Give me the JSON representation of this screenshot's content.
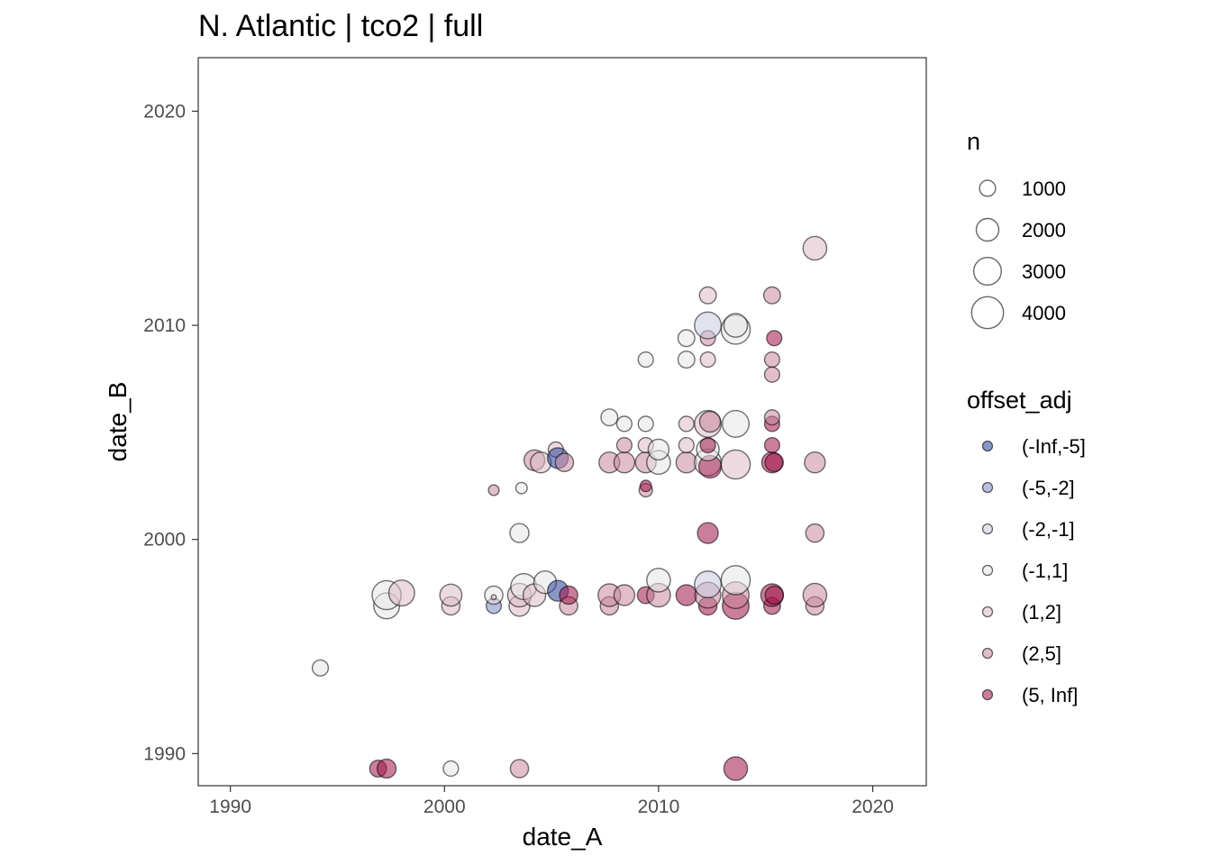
{
  "chart_data": {
    "type": "scatter",
    "title": "N. Atlantic | tco2 | full",
    "xlabel": "date_A",
    "ylabel": "date_B",
    "xlim": [
      1988.5,
      2022.5
    ],
    "ylim": [
      1988.5,
      2022.5
    ],
    "x_ticks": [
      1990,
      2000,
      2010,
      2020
    ],
    "y_ticks": [
      1990,
      2000,
      2010,
      2020
    ],
    "grid": false,
    "legend_position": "right",
    "size_legend": {
      "title": "n",
      "entries": [
        {
          "label": "1000",
          "value": 1000
        },
        {
          "label": "2000",
          "value": 2000
        },
        {
          "label": "3000",
          "value": 3000
        },
        {
          "label": "4000",
          "value": 4000
        }
      ]
    },
    "color_legend": {
      "title": "offset_adj",
      "entries": [
        {
          "label": "(-Inf,-5]",
          "color": "#2a3f9a"
        },
        {
          "label": "(-5,-2]",
          "color": "#7e8cc4"
        },
        {
          "label": "(-2,-1]",
          "color": "#c8cbdf"
        },
        {
          "label": "(-1,1]",
          "color": "#e6e6e6"
        },
        {
          "label": "(1,2]",
          "color": "#dcbcc6"
        },
        {
          "label": "(2,5]",
          "color": "#c8899d"
        },
        {
          "label": "(5, Inf]",
          "color": "#a11449"
        }
      ]
    },
    "points": [
      {
        "x": 1994.2,
        "y": 1994.0,
        "n": 1000,
        "class": "(-1,1]"
      },
      {
        "x": 1996.9,
        "y": 1989.3,
        "n": 1100,
        "class": "(5, Inf]"
      },
      {
        "x": 1997.3,
        "y": 1989.3,
        "n": 1400,
        "class": "(5, Inf]"
      },
      {
        "x": 1997.3,
        "y": 1996.9,
        "n": 2600,
        "class": "(-1,1]"
      },
      {
        "x": 1997.3,
        "y": 1997.4,
        "n": 3300,
        "class": "(-1,1]"
      },
      {
        "x": 2000.3,
        "y": 1989.3,
        "n": 900,
        "class": "(-1,1]"
      },
      {
        "x": 2000.3,
        "y": 1996.9,
        "n": 1300,
        "class": "(1,2]"
      },
      {
        "x": 2000.3,
        "y": 1997.4,
        "n": 1900,
        "class": "(1,2]"
      },
      {
        "x": 1998.0,
        "y": 1997.5,
        "n": 2600,
        "class": "(1,2]"
      },
      {
        "x": 2002.3,
        "y": 1996.9,
        "n": 900,
        "class": "(-5,-2]"
      },
      {
        "x": 2002.3,
        "y": 1997.4,
        "n": 1300,
        "class": "(-1,1]"
      },
      {
        "x": 2002.3,
        "y": 2002.3,
        "n": 450,
        "class": "(2,5]"
      },
      {
        "x": 2002.3,
        "y": 1997.3,
        "n": 100,
        "class": "(1,2]"
      },
      {
        "x": 2003.5,
        "y": 1989.3,
        "n": 1300,
        "class": "(2,5]"
      },
      {
        "x": 2003.5,
        "y": 1996.9,
        "n": 1700,
        "class": "(1,2]"
      },
      {
        "x": 2003.5,
        "y": 1997.4,
        "n": 2200,
        "class": "(1,2]"
      },
      {
        "x": 2003.7,
        "y": 1997.8,
        "n": 2600,
        "class": "(-1,1]"
      },
      {
        "x": 2003.5,
        "y": 2000.3,
        "n": 1400,
        "class": "(-1,1]"
      },
      {
        "x": 2003.6,
        "y": 2002.4,
        "n": 500,
        "class": "(-1,1]"
      },
      {
        "x": 2004.2,
        "y": 1997.4,
        "n": 2000,
        "class": "(1,2]"
      },
      {
        "x": 2004.7,
        "y": 1998.0,
        "n": 2000,
        "class": "(-1,1]"
      },
      {
        "x": 2004.2,
        "y": 2003.7,
        "n": 1700,
        "class": "(2,5]"
      },
      {
        "x": 2004.5,
        "y": 2003.6,
        "n": 1700,
        "class": "(1,2]"
      },
      {
        "x": 2005.2,
        "y": 2004.2,
        "n": 900,
        "class": "(1,2]"
      },
      {
        "x": 2005.3,
        "y": 1997.6,
        "n": 1700,
        "class": "(-Inf,-5]"
      },
      {
        "x": 2005.3,
        "y": 2003.8,
        "n": 1700,
        "class": "(-Inf,-5]"
      },
      {
        "x": 2005.8,
        "y": 1996.9,
        "n": 1300,
        "class": "(2,5]"
      },
      {
        "x": 2005.8,
        "y": 1997.4,
        "n": 1300,
        "class": "(5, Inf]"
      },
      {
        "x": 2005.6,
        "y": 2003.6,
        "n": 1300,
        "class": "(2,5]"
      },
      {
        "x": 2007.7,
        "y": 1996.9,
        "n": 1300,
        "class": "(2,5]"
      },
      {
        "x": 2007.7,
        "y": 1997.4,
        "n": 2000,
        "class": "(2,5]"
      },
      {
        "x": 2007.7,
        "y": 2003.6,
        "n": 1700,
        "class": "(2,5]"
      },
      {
        "x": 2007.7,
        "y": 2005.7,
        "n": 1100,
        "class": "(-1,1]"
      },
      {
        "x": 2008.4,
        "y": 1997.4,
        "n": 1700,
        "class": "(2,5]"
      },
      {
        "x": 2008.4,
        "y": 2003.6,
        "n": 1700,
        "class": "(2,5]"
      },
      {
        "x": 2008.4,
        "y": 2004.4,
        "n": 900,
        "class": "(2,5]"
      },
      {
        "x": 2008.4,
        "y": 2005.4,
        "n": 900,
        "class": "(-1,1]"
      },
      {
        "x": 2009.4,
        "y": 1997.4,
        "n": 1100,
        "class": "(5, Inf]"
      },
      {
        "x": 2009.4,
        "y": 2002.3,
        "n": 700,
        "class": "(2,5]"
      },
      {
        "x": 2009.4,
        "y": 2002.5,
        "n": 500,
        "class": "(5, Inf]"
      },
      {
        "x": 2009.4,
        "y": 2003.6,
        "n": 1700,
        "class": "(2,5]"
      },
      {
        "x": 2009.4,
        "y": 2004.4,
        "n": 900,
        "class": "(1,2]"
      },
      {
        "x": 2009.4,
        "y": 2005.4,
        "n": 900,
        "class": "(-1,1]"
      },
      {
        "x": 2009.4,
        "y": 2008.4,
        "n": 900,
        "class": "(-1,1]"
      },
      {
        "x": 2010.0,
        "y": 1997.4,
        "n": 2200,
        "class": "(2,5]"
      },
      {
        "x": 2010.0,
        "y": 1998.1,
        "n": 2200,
        "class": "(-1,1]"
      },
      {
        "x": 2010.0,
        "y": 2003.6,
        "n": 2200,
        "class": "(-1,1]"
      },
      {
        "x": 2010.0,
        "y": 2004.2,
        "n": 1700,
        "class": "(-1,1]"
      },
      {
        "x": 2011.3,
        "y": 1997.4,
        "n": 1700,
        "class": "(5, Inf]"
      },
      {
        "x": 2011.3,
        "y": 2003.6,
        "n": 1700,
        "class": "(2,5]"
      },
      {
        "x": 2011.3,
        "y": 2004.4,
        "n": 900,
        "class": "(1,2]"
      },
      {
        "x": 2011.3,
        "y": 2005.4,
        "n": 900,
        "class": "(1,2]"
      },
      {
        "x": 2011.3,
        "y": 2008.4,
        "n": 1100,
        "class": "(-1,1]"
      },
      {
        "x": 2011.3,
        "y": 2009.4,
        "n": 1100,
        "class": "(-1,1]"
      },
      {
        "x": 2012.3,
        "y": 1996.9,
        "n": 1300,
        "class": "(5, Inf]"
      },
      {
        "x": 2012.3,
        "y": 1997.4,
        "n": 2600,
        "class": "(2,5]"
      },
      {
        "x": 2012.3,
        "y": 1997.9,
        "n": 2800,
        "class": "(-2,-1]"
      },
      {
        "x": 2012.3,
        "y": 2000.3,
        "n": 1700,
        "class": "(5, Inf]"
      },
      {
        "x": 2012.3,
        "y": 2003.6,
        "n": 2800,
        "class": "(-1,1]"
      },
      {
        "x": 2012.4,
        "y": 2003.4,
        "n": 2000,
        "class": "(5, Inf]"
      },
      {
        "x": 2012.3,
        "y": 2004.2,
        "n": 2000,
        "class": "(-1,1]"
      },
      {
        "x": 2012.3,
        "y": 2004.4,
        "n": 900,
        "class": "(5, Inf]"
      },
      {
        "x": 2012.3,
        "y": 2005.4,
        "n": 2800,
        "class": "(1,2]"
      },
      {
        "x": 2012.4,
        "y": 2005.5,
        "n": 1700,
        "class": "(2,5]"
      },
      {
        "x": 2012.3,
        "y": 2008.4,
        "n": 900,
        "class": "(1,2]"
      },
      {
        "x": 2012.3,
        "y": 2009.4,
        "n": 900,
        "class": "(2,5]"
      },
      {
        "x": 2012.3,
        "y": 2010.0,
        "n": 2800,
        "class": "(-2,-1]"
      },
      {
        "x": 2012.3,
        "y": 2011.4,
        "n": 1100,
        "class": "(1,2]"
      },
      {
        "x": 2013.6,
        "y": 1989.3,
        "n": 2200,
        "class": "(5, Inf]"
      },
      {
        "x": 2013.6,
        "y": 1996.9,
        "n": 2800,
        "class": "(5, Inf]"
      },
      {
        "x": 2013.6,
        "y": 1997.4,
        "n": 2800,
        "class": "(2,5]"
      },
      {
        "x": 2013.6,
        "y": 1998.1,
        "n": 3300,
        "class": "(-1,1]"
      },
      {
        "x": 2013.6,
        "y": 2003.5,
        "n": 3300,
        "class": "(1,2]"
      },
      {
        "x": 2013.6,
        "y": 2005.4,
        "n": 2800,
        "class": "(-1,1]"
      },
      {
        "x": 2013.6,
        "y": 2009.8,
        "n": 3300,
        "class": "(-1,1]"
      },
      {
        "x": 2013.6,
        "y": 2010.0,
        "n": 2200,
        "class": "(-1,1]"
      },
      {
        "x": 2015.3,
        "y": 1996.9,
        "n": 1100,
        "class": "(5, Inf]"
      },
      {
        "x": 2015.3,
        "y": 1997.4,
        "n": 2000,
        "class": "(5, Inf]"
      },
      {
        "x": 2015.4,
        "y": 1997.4,
        "n": 1300,
        "class": "(5, Inf]"
      },
      {
        "x": 2015.3,
        "y": 2003.6,
        "n": 1700,
        "class": "(5, Inf]"
      },
      {
        "x": 2015.4,
        "y": 2003.6,
        "n": 1300,
        "class": "(5, Inf]"
      },
      {
        "x": 2015.3,
        "y": 2004.4,
        "n": 900,
        "class": "(5, Inf]"
      },
      {
        "x": 2015.3,
        "y": 2005.4,
        "n": 900,
        "class": "(5, Inf]"
      },
      {
        "x": 2015.3,
        "y": 2005.7,
        "n": 900,
        "class": "(2,5]"
      },
      {
        "x": 2015.3,
        "y": 2007.7,
        "n": 900,
        "class": "(2,5]"
      },
      {
        "x": 2015.3,
        "y": 2008.4,
        "n": 900,
        "class": "(2,5]"
      },
      {
        "x": 2015.4,
        "y": 2009.4,
        "n": 900,
        "class": "(5, Inf]"
      },
      {
        "x": 2015.3,
        "y": 2011.4,
        "n": 1100,
        "class": "(2,5]"
      },
      {
        "x": 2017.3,
        "y": 1996.9,
        "n": 1300,
        "class": "(2,5]"
      },
      {
        "x": 2017.3,
        "y": 1997.4,
        "n": 2200,
        "class": "(2,5]"
      },
      {
        "x": 2017.3,
        "y": 2000.3,
        "n": 1300,
        "class": "(2,5]"
      },
      {
        "x": 2017.3,
        "y": 2003.6,
        "n": 1700,
        "class": "(2,5]"
      },
      {
        "x": 2017.3,
        "y": 2013.6,
        "n": 2200,
        "class": "(1,2]"
      }
    ]
  }
}
